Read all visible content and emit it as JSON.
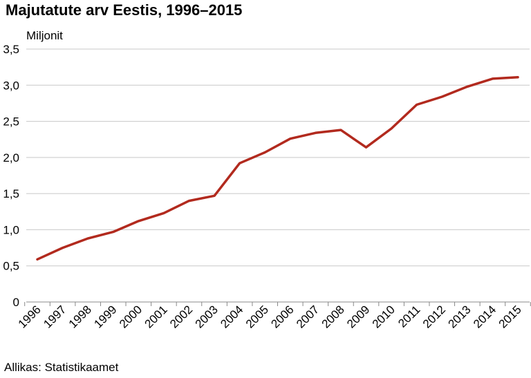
{
  "header": {
    "title": "Majutatute arv Eestis, 1996–2015"
  },
  "footer": {
    "source": "Allikas: Statistikaamet"
  },
  "chart_data": {
    "type": "line",
    "title": "Majutatute arv Eestis, 1996–2015",
    "ylabel": "Miljonit",
    "xlabel": "",
    "ylim": [
      0,
      3.5
    ],
    "yticks": [
      "0",
      "0,5",
      "1,0",
      "1,5",
      "2,0",
      "2,5",
      "3,0",
      "3,5"
    ],
    "grid": true,
    "x": [
      "1996",
      "1997",
      "1998",
      "1999",
      "2000",
      "2001",
      "2002",
      "2003",
      "2004",
      "2005",
      "2006",
      "2007",
      "2008",
      "2009",
      "2010",
      "2011",
      "2012",
      "2013",
      "2014",
      "2015"
    ],
    "series": [
      {
        "values": [
          0.59,
          0.75,
          0.88,
          0.97,
          1.12,
          1.23,
          1.4,
          1.47,
          1.92,
          2.07,
          2.26,
          2.34,
          2.38,
          2.14,
          2.4,
          2.73,
          2.84,
          2.98,
          3.09,
          3.11
        ],
        "color": "#b22a1e"
      }
    ],
    "colors": {
      "line": "#b22a1e",
      "grid": "#c8c8c8",
      "axis": "#888888"
    }
  }
}
